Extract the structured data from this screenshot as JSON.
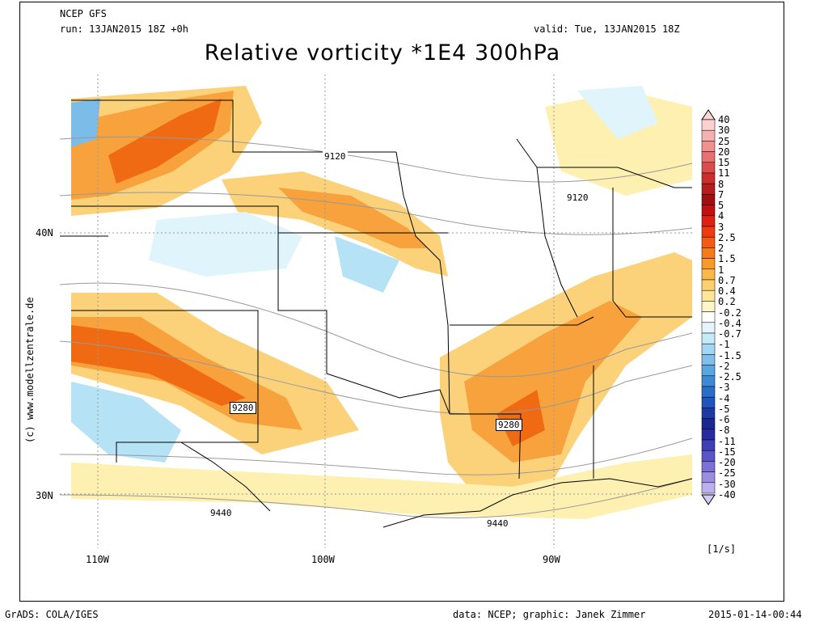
{
  "header": {
    "model": "NCEP GFS",
    "run": "run: 13JAN2015 18Z +0h",
    "valid": "valid: Tue, 13JAN2015 18Z",
    "title": "Relative vorticity *1E4 300hPa"
  },
  "side_credit": "(c) www.modellzentrale.de",
  "axes": {
    "lat_labels": [
      "40N",
      "30N"
    ],
    "lon_labels": [
      "110W",
      "100W",
      "90W"
    ]
  },
  "contour_labels": [
    "9120",
    "9120",
    "9280",
    "9280",
    "9440",
    "9440"
  ],
  "colorbar": {
    "labels": [
      "40",
      "30",
      "25",
      "20",
      "15",
      "11",
      "8",
      "7",
      "5",
      "4",
      "3",
      "2.5",
      "2",
      "1.5",
      "1",
      "0.7",
      "0.4",
      "0.2",
      "-0.2",
      "-0.4",
      "-0.7",
      "-1",
      "-1.5",
      "-2",
      "-2.5",
      "-3",
      "-4",
      "-5",
      "-6",
      "-8",
      "-11",
      "-15",
      "-20",
      "-25",
      "-30",
      "-40"
    ],
    "unit": "[1/s]",
    "colors": {
      "pos_strong": "#c81e1e",
      "pos_mid": "#f06a14",
      "pos_low": "#f7a23c",
      "pos_weak": "#fbd27a",
      "pos_faint": "#fdf0b0",
      "neg_faint": "#dff4fb",
      "neg_weak": "#b6e2f5",
      "neg_mid": "#7bbde8",
      "neg_strong": "#2c6fcf"
    }
  },
  "footer": {
    "left": "GrADS: COLA/IGES",
    "center": "data: NCEP; graphic: Janek Zimmer",
    "right": "2015-01-14-00:44"
  }
}
